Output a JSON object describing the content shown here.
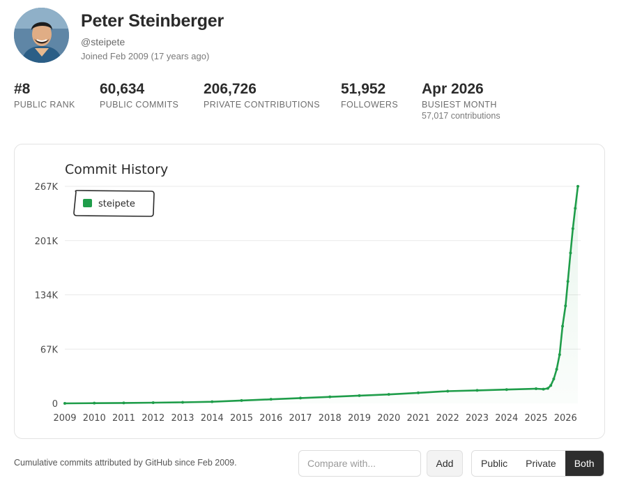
{
  "profile": {
    "name": "Peter Steinberger",
    "handle": "@steipete",
    "joined": "Joined Feb 2009 (17 years ago)"
  },
  "stats": [
    {
      "value": "#8",
      "label": "PUBLIC RANK"
    },
    {
      "value": "60,634",
      "label": "PUBLIC COMMITS"
    },
    {
      "value": "206,726",
      "label": "PRIVATE CONTRIBUTIONS"
    },
    {
      "value": "51,952",
      "label": "FOLLOWERS"
    },
    {
      "value": "Apr 2026",
      "label": "BUSIEST MONTH",
      "sub": "57,017 contributions"
    }
  ],
  "chart_data": {
    "type": "line",
    "title": "Commit History",
    "legend": {
      "position": "top-left",
      "entries": [
        "steipete"
      ]
    },
    "color": "#1f9d4a",
    "y_ticks": [
      "0",
      "67K",
      "134K",
      "201K",
      "267K"
    ],
    "ylim": [
      0,
      267000
    ],
    "x_ticks": [
      "2009",
      "2010",
      "2011",
      "2012",
      "2013",
      "2014",
      "2015",
      "2016",
      "2017",
      "2018",
      "2019",
      "2020",
      "2021",
      "2022",
      "2023",
      "2024",
      "2025",
      "2026"
    ],
    "xlim": [
      2009,
      2026.42
    ],
    "grid": true,
    "series": [
      {
        "name": "steipete",
        "x": [
          2009,
          2010,
          2011,
          2012,
          2013,
          2014,
          2015,
          2016,
          2017,
          2018,
          2019,
          2020,
          2021,
          2022,
          2023,
          2024,
          2025,
          2025.25,
          2025.4,
          2025.5,
          2025.6,
          2025.7,
          2025.8,
          2025.9,
          2026.0,
          2026.08,
          2026.17,
          2026.25,
          2026.33,
          2026.42
        ],
        "y": [
          0,
          300,
          500,
          900,
          1300,
          2000,
          3500,
          5000,
          6500,
          8000,
          9500,
          11000,
          13000,
          15000,
          16000,
          17000,
          18000,
          17500,
          18500,
          22000,
          30000,
          42000,
          60000,
          95000,
          120000,
          150000,
          185000,
          215000,
          240000,
          267000
        ]
      }
    ]
  },
  "footer": {
    "note": "Cumulative commits attributed by GitHub since Feb 2009.",
    "compare_placeholder": "Compare with...",
    "add_label": "Add",
    "modes": [
      "Public",
      "Private",
      "Both"
    ],
    "active_mode": "Both"
  }
}
